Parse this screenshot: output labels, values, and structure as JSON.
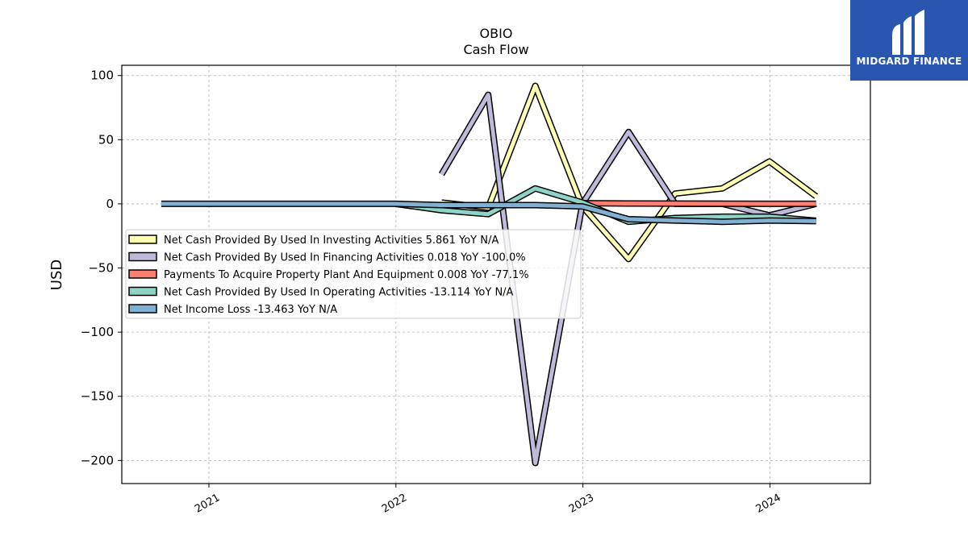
{
  "brand": {
    "name": "MIDGARD FINANCE",
    "bg": "#2a56b0"
  },
  "chart_data": {
    "type": "line",
    "title": "OBIO",
    "subtitle": "Cash Flow",
    "ylabel": "USD",
    "xlabel": "",
    "xlim": [
      "2020-07-15",
      "2024-07-15"
    ],
    "ylim": [
      -218,
      108
    ],
    "yticks": [
      100,
      50,
      0,
      -50,
      -100,
      -150,
      -200
    ],
    "ytick_labels": [
      "100",
      "50",
      "0",
      "−50",
      "−100",
      "−150",
      "−200"
    ],
    "xticks": [
      "2021-01-01",
      "2022-01-01",
      "2023-01-01",
      "2024-01-01"
    ],
    "xtick_labels": [
      "2021",
      "2022",
      "2023",
      "2024"
    ],
    "grid": true,
    "legend_position": "center-left",
    "series": [
      {
        "name": "Net Cash Provided By Used In Investing Activities  5.861 YoY N/A",
        "color": "#ffffb3",
        "points": [
          [
            "2022-03-31",
            1
          ],
          [
            "2022-06-30",
            -3
          ],
          [
            "2022-09-30",
            92
          ],
          [
            "2022-12-31",
            -2
          ],
          [
            "2023-03-31",
            -43
          ],
          [
            "2023-06-30",
            8
          ],
          [
            "2023-09-30",
            12
          ],
          [
            "2023-12-31",
            33
          ],
          [
            "2024-03-31",
            5.861
          ]
        ]
      },
      {
        "name": "Net Cash Provided By Used In Financing Activities  0.018 YoY -100.0%",
        "color": "#bebada",
        "points": [
          [
            "2022-03-31",
            23
          ],
          [
            "2022-06-30",
            85
          ],
          [
            "2022-09-30",
            -202
          ],
          [
            "2022-12-31",
            0
          ],
          [
            "2023-03-31",
            56
          ],
          [
            "2023-06-30",
            0
          ],
          [
            "2023-09-30",
            0
          ],
          [
            "2023-12-31",
            -9
          ],
          [
            "2024-03-31",
            0.018
          ]
        ]
      },
      {
        "name": "Payments To Acquire Property Plant And Equipment  0.008 YoY -77.1%",
        "color": "#fb8072",
        "points": [
          [
            "2022-12-31",
            0.5
          ],
          [
            "2023-03-31",
            0.3
          ],
          [
            "2023-06-30",
            0.2
          ],
          [
            "2023-09-30",
            0.1
          ],
          [
            "2023-12-31",
            0.05
          ],
          [
            "2024-03-31",
            0.008
          ]
        ]
      },
      {
        "name": "Net Cash Provided By Used In Operating Activities  -13.114 YoY N/A",
        "color": "#8dd3c7",
        "points": [
          [
            "2021-12-31",
            0
          ],
          [
            "2022-03-31",
            -5
          ],
          [
            "2022-06-30",
            -8
          ],
          [
            "2022-09-30",
            12
          ],
          [
            "2022-12-31",
            1
          ],
          [
            "2023-03-31",
            -14
          ],
          [
            "2023-06-30",
            -11
          ],
          [
            "2023-09-30",
            -10
          ],
          [
            "2023-12-31",
            -10
          ],
          [
            "2024-03-31",
            -13.114
          ]
        ]
      },
      {
        "name": "Net Income Loss  -13.463 YoY N/A",
        "color": "#80b1d3",
        "points": [
          [
            "2020-09-30",
            0
          ],
          [
            "2021-12-31",
            0
          ],
          [
            "2022-03-31",
            -1
          ],
          [
            "2022-06-30",
            -1
          ],
          [
            "2022-09-30",
            -1
          ],
          [
            "2022-12-31",
            -2
          ],
          [
            "2023-03-31",
            -12
          ],
          [
            "2023-06-30",
            -13
          ],
          [
            "2023-09-30",
            -14
          ],
          [
            "2023-12-31",
            -13
          ],
          [
            "2024-03-31",
            -13.463
          ]
        ]
      }
    ]
  }
}
